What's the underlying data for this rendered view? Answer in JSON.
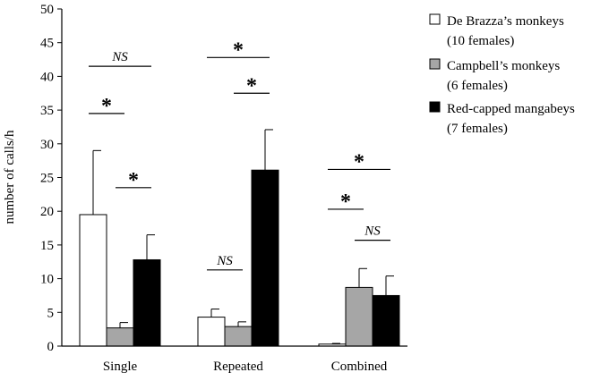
{
  "chart_data": {
    "type": "bar",
    "ylabel": "number of calls/h",
    "ylim": [
      0,
      50
    ],
    "yticks": [
      0,
      5,
      10,
      15,
      20,
      25,
      30,
      35,
      40,
      45,
      50
    ],
    "categories": [
      "Single",
      "Repeated",
      "Combined"
    ],
    "series": [
      {
        "name": "De Brazza’s monkeys",
        "sub": "(10 females)",
        "color": "#ffffff",
        "values": [
          19.5,
          4.3,
          0.3
        ],
        "errors": [
          9.5,
          1.2,
          0.1
        ]
      },
      {
        "name": "Campbell’s monkeys",
        "sub": "(6 females)",
        "color": "#a6a6a6",
        "values": [
          2.7,
          2.9,
          8.7
        ],
        "errors": [
          0.8,
          0.7,
          2.8
        ]
      },
      {
        "name": "Red-capped mangabeys",
        "sub": "(7 females)",
        "color": "#000000",
        "values": [
          12.8,
          26.1,
          7.5
        ],
        "errors": [
          3.7,
          6.0,
          2.9
        ]
      }
    ],
    "significance": [
      {
        "category": 0,
        "from": 0,
        "to": 2,
        "level": 41.5,
        "label": "NS"
      },
      {
        "category": 0,
        "from": 0,
        "to": 1,
        "level": 34.5,
        "label": "*"
      },
      {
        "category": 0,
        "from": 1,
        "to": 2,
        "level": 23.5,
        "label": "*"
      },
      {
        "category": 1,
        "from": 0,
        "to": 1,
        "level": 11.3,
        "label": "NS"
      },
      {
        "category": 1,
        "from": 0,
        "to": 2,
        "level": 42.8,
        "label": "*"
      },
      {
        "category": 1,
        "from": 1,
        "to": 2,
        "level": 37.5,
        "label": "*"
      },
      {
        "category": 2,
        "from": 0,
        "to": 2,
        "level": 26.2,
        "label": "*"
      },
      {
        "category": 2,
        "from": 0,
        "to": 1,
        "level": 20.3,
        "label": "*"
      },
      {
        "category": 2,
        "from": 1,
        "to": 2,
        "level": 15.7,
        "label": "NS"
      }
    ]
  }
}
